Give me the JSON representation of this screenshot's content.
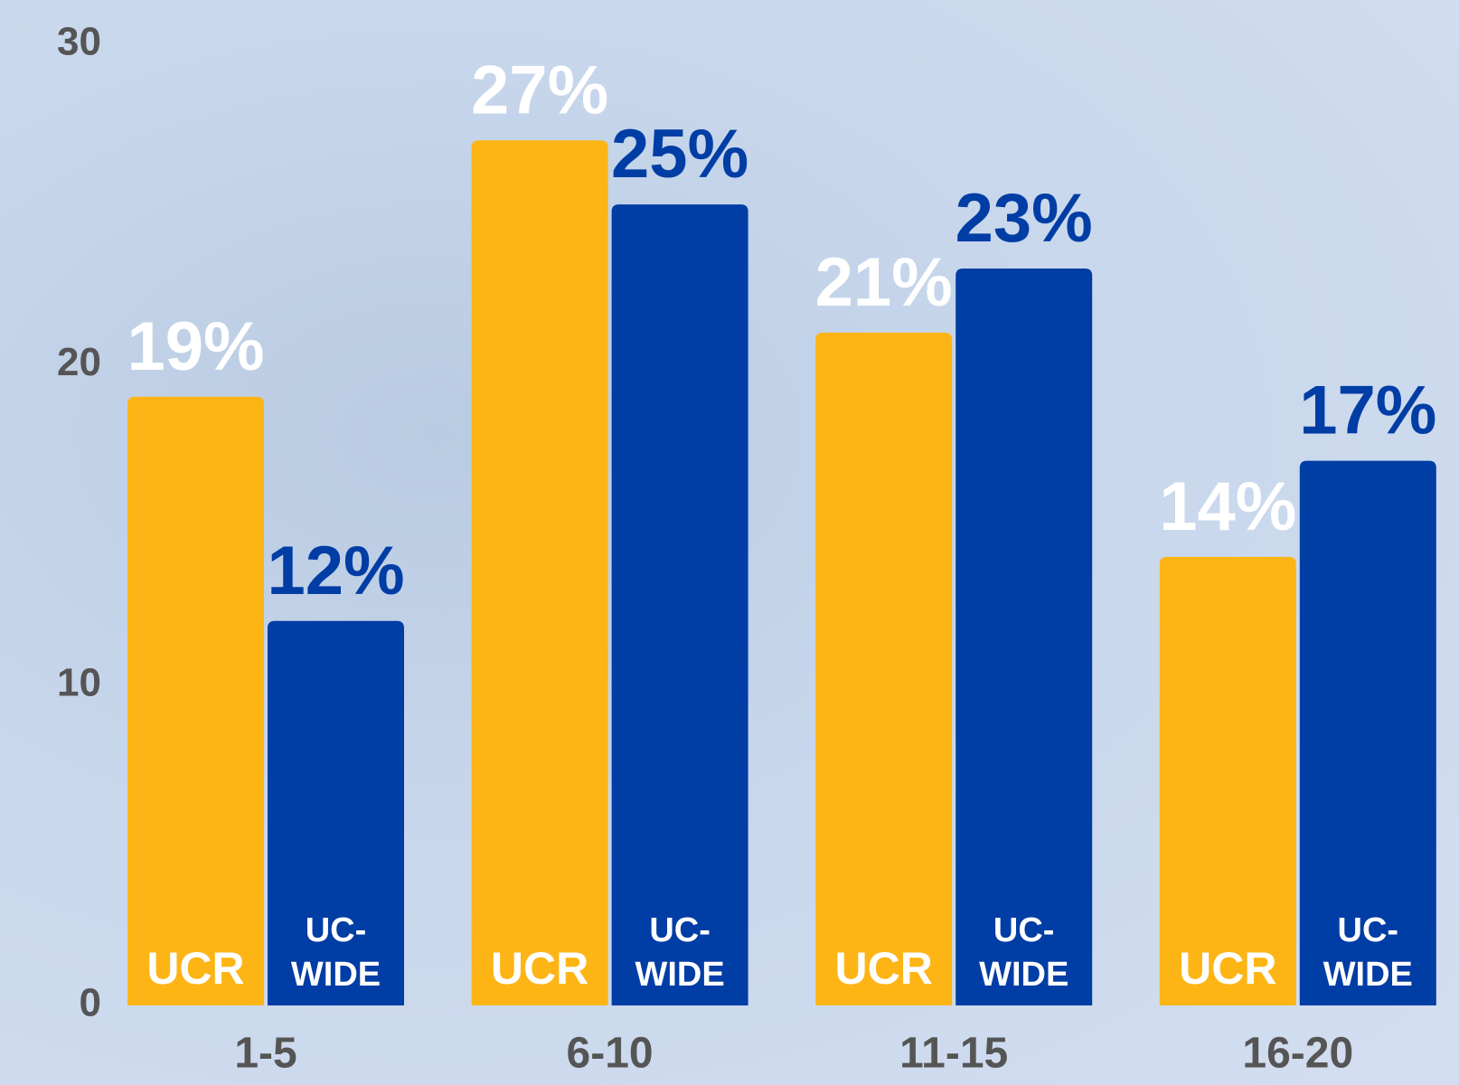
{
  "chart_data": {
    "type": "bar",
    "categories": [
      "1-5",
      "6-10",
      "11-15",
      "16-20"
    ],
    "series": [
      {
        "name": "UCR",
        "color": "#fdb515",
        "label_color": "#ffffff",
        "values": [
          19,
          27,
          21,
          14
        ],
        "value_labels": [
          "19%",
          "27%",
          "21%",
          "14%"
        ]
      },
      {
        "name": "UC-WIDE",
        "color": "#003da5",
        "label_color": "#003da5",
        "values": [
          12,
          25,
          23,
          17
        ],
        "value_labels": [
          "12%",
          "25%",
          "23%",
          "17%"
        ]
      }
    ],
    "ylim": [
      0,
      30
    ],
    "yticks": [
      0,
      10,
      20,
      30
    ],
    "grid": false
  }
}
